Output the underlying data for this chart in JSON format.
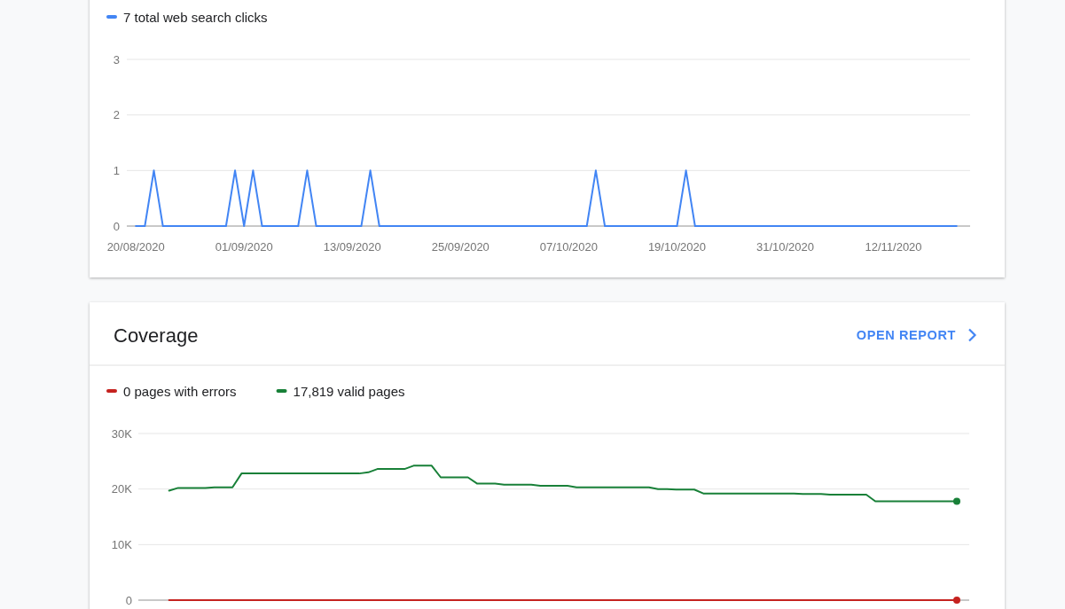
{
  "chart_data": [
    {
      "type": "line",
      "x": [
        "2020-08-20",
        "2020-08-21",
        "2020-08-22",
        "2020-08-23",
        "2020-08-30",
        "2020-08-31",
        "2020-09-01",
        "2020-09-02",
        "2020-09-03",
        "2020-09-07",
        "2020-09-08",
        "2020-09-09",
        "2020-09-14",
        "2020-09-15",
        "2020-09-16",
        "2020-10-09",
        "2020-10-10",
        "2020-10-11",
        "2020-10-19",
        "2020-10-20",
        "2020-10-21",
        "2020-11-19"
      ],
      "series": [
        {
          "name": "7 total web search clicks",
          "color": "#4285f4",
          "values": [
            0,
            0,
            1,
            0,
            0,
            1,
            0,
            1,
            0,
            0,
            1,
            0,
            0,
            1,
            0,
            0,
            1,
            0,
            0,
            1,
            0,
            0
          ]
        }
      ],
      "xlim": [
        "2020-08-19",
        "2020-11-20T12:00"
      ],
      "xticks": [
        {
          "value": "2020-08-20",
          "label": "20/08/2020"
        },
        {
          "value": "2020-09-01",
          "label": "01/09/2020"
        },
        {
          "value": "2020-09-13",
          "label": "13/09/2020"
        },
        {
          "value": "2020-09-25",
          "label": "25/09/2020"
        },
        {
          "value": "2020-10-07",
          "label": "07/10/2020"
        },
        {
          "value": "2020-10-19",
          "label": "19/10/2020"
        },
        {
          "value": "2020-10-31",
          "label": "31/10/2020"
        },
        {
          "value": "2020-11-12",
          "label": "12/11/2020"
        }
      ],
      "ylim": [
        0,
        3
      ],
      "yticks": [
        0,
        1,
        2,
        3
      ],
      "grid": "y",
      "legend": "top left"
    },
    {
      "type": "line",
      "title": "Coverage",
      "annotations": [
        "OPEN REPORT"
      ],
      "categories": [
        null,
        null,
        null,
        null,
        null,
        null,
        null,
        null,
        null,
        null,
        null,
        null,
        null,
        null,
        null,
        null,
        null,
        null,
        null,
        null,
        null,
        null,
        null,
        null,
        null,
        null,
        null,
        null,
        null,
        null,
        null,
        null,
        null,
        null,
        null,
        null,
        null,
        null,
        null,
        null,
        null,
        null,
        null,
        null,
        null,
        null,
        null,
        null,
        null,
        null,
        null,
        null,
        null,
        null,
        null,
        null,
        null,
        null,
        null,
        null,
        null,
        null,
        null,
        null,
        null,
        null,
        null,
        null,
        null,
        null,
        null,
        null,
        null,
        null,
        null,
        null,
        null,
        null,
        null,
        null,
        null,
        null,
        null,
        null,
        null,
        null,
        null,
        null
      ],
      "series": [
        {
          "name": "0 pages with errors",
          "color": "#c5221f",
          "values": [
            0,
            0,
            0,
            0,
            0,
            0,
            0,
            0,
            0,
            0,
            0,
            0,
            0,
            0,
            0,
            0,
            0,
            0,
            0,
            0,
            0,
            0,
            0,
            0,
            0,
            0,
            0,
            0,
            0,
            0,
            0,
            0,
            0,
            0,
            0,
            0,
            0,
            0,
            0,
            0,
            0,
            0,
            0,
            0,
            0,
            0,
            0,
            0,
            0,
            0,
            0,
            0,
            0,
            0,
            0,
            0,
            0,
            0,
            0,
            0,
            0,
            0,
            0,
            0,
            0,
            0,
            0,
            0,
            0,
            0,
            0,
            0,
            0,
            0,
            0,
            0,
            0,
            0,
            0,
            0,
            0,
            0,
            0,
            0,
            0,
            0,
            0,
            0
          ]
        },
        {
          "name": "17,819 valid pages",
          "color": "#188038",
          "values": [
            19700,
            20200,
            20200,
            20200,
            20200,
            20300,
            20300,
            20300,
            22800,
            22800,
            22800,
            22800,
            22800,
            22800,
            22800,
            22800,
            22800,
            22800,
            22800,
            22800,
            22800,
            22800,
            23000,
            23600,
            23600,
            23600,
            23600,
            24200,
            24200,
            24200,
            22100,
            22100,
            22100,
            22100,
            21000,
            21000,
            21000,
            20800,
            20800,
            20800,
            20800,
            20600,
            20600,
            20600,
            20600,
            20300,
            20300,
            20300,
            20300,
            20300,
            20300,
            20300,
            20300,
            20300,
            20000,
            20000,
            19900,
            19900,
            19900,
            19200,
            19200,
            19200,
            19200,
            19200,
            19200,
            19200,
            19200,
            19200,
            19200,
            19200,
            19100,
            19100,
            19100,
            19000,
            19000,
            19000,
            19000,
            19000,
            17800,
            17800,
            17800,
            17800,
            17800,
            17800,
            17800,
            17800,
            17800,
            17800
          ]
        },
        {
          "type": "scatter",
          "marker": "circle",
          "color": "#c5221f",
          "values": [
            null,
            null,
            null,
            null,
            null,
            null,
            null,
            null,
            null,
            null,
            null,
            null,
            null,
            null,
            null,
            null,
            null,
            null,
            null,
            null,
            null,
            null,
            null,
            null,
            null,
            null,
            null,
            null,
            null,
            null,
            null,
            null,
            null,
            null,
            null,
            null,
            null,
            null,
            null,
            null,
            null,
            null,
            null,
            null,
            null,
            null,
            null,
            null,
            null,
            null,
            null,
            null,
            null,
            null,
            null,
            null,
            null,
            null,
            null,
            null,
            null,
            null,
            null,
            null,
            null,
            null,
            null,
            null,
            null,
            null,
            null,
            null,
            null,
            null,
            null,
            null,
            null,
            null,
            null,
            null,
            null,
            null,
            null,
            null,
            null,
            null,
            null,
            0
          ]
        },
        {
          "type": "scatter",
          "marker": "circle",
          "color": "#188038",
          "values": [
            null,
            null,
            null,
            null,
            null,
            null,
            null,
            null,
            null,
            null,
            null,
            null,
            null,
            null,
            null,
            null,
            null,
            null,
            null,
            null,
            null,
            null,
            null,
            null,
            null,
            null,
            null,
            null,
            null,
            null,
            null,
            null,
            null,
            null,
            null,
            null,
            null,
            null,
            null,
            null,
            null,
            null,
            null,
            null,
            null,
            null,
            null,
            null,
            null,
            null,
            null,
            null,
            null,
            null,
            null,
            null,
            null,
            null,
            null,
            null,
            null,
            null,
            null,
            null,
            null,
            null,
            null,
            null,
            null,
            null,
            null,
            null,
            null,
            null,
            null,
            null,
            null,
            null,
            null,
            null,
            null,
            null,
            null,
            null,
            null,
            null,
            null,
            17800
          ]
        }
      ],
      "ylim": [
        0,
        30000
      ],
      "yticks": [
        0,
        {
          "value": 10000,
          "label": "10K"
        },
        {
          "value": 20000,
          "label": "20K"
        },
        {
          "value": 30000,
          "label": "30K"
        }
      ],
      "grid": "y",
      "legend": "top left",
      "tick_labels": "y"
    }
  ]
}
